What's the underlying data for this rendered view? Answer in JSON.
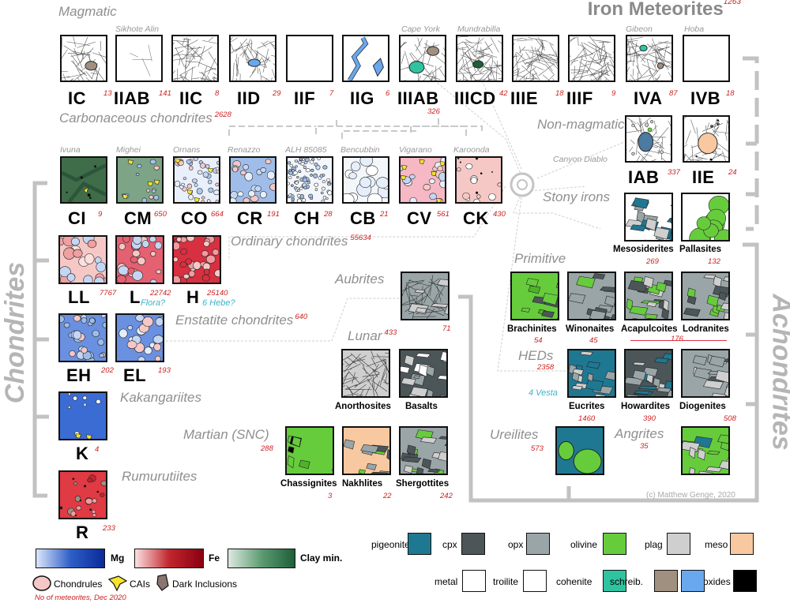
{
  "colors": {
    "mg": "#2f5fc7",
    "fe": "#c2262e",
    "clay": "#1e5e38",
    "pigeonite": "#1f7892",
    "cpx": "#4c5658",
    "opx": "#9aa5a8",
    "olivine": "#66cc3c",
    "plag": "#cfcfcf",
    "meso": "#f8c8a0",
    "metal": "#ffffff",
    "troilite": "#ffffff",
    "cohenite": "#2fc3a0",
    "schreib": "#a09080",
    "oxides": "#6aa8ee",
    "black": "#000000"
  },
  "title": {
    "text": "Iron Meteorites",
    "count": "1263"
  },
  "headers": {
    "magmatic": "Magmatic",
    "carbonaceous": "Carbonaceous chondrites",
    "carbonaceous_count": "2628",
    "ordinary": "Ordinary chondrites",
    "ordinary_count": "55634",
    "enstatite": "Enstatite chondrites",
    "enstatite_count": "640",
    "kakangari": "Kakangariites",
    "rumuruti": "Rumurutiites",
    "nonmagmatic": "Non-magmatic",
    "stony": "Stony irons",
    "primitive": "Primitive",
    "aubrites": "Aubrites",
    "lunar": "Lunar",
    "lunar_count": "433",
    "martian": "Martian (SNC)",
    "martian_count": "288",
    "heds": "HEDs",
    "heds_count": "2358",
    "ureilites": "Ureilites",
    "ureilites_count": "573",
    "angrites": "Angrites",
    "angrites_count": "35",
    "chondrites": "Chondrites",
    "achondrites": "Achondrites"
  },
  "subs": {
    "sikhote": "Sikhote Alin",
    "capeyork": "Cape York",
    "mundrabilla": "Mundrabilla",
    "gibeon": "Gibeon",
    "hoba": "Hoba",
    "canyon": "Canyon Diablo",
    "ivuna": "Ivuna",
    "mighei": "Mighei",
    "ornans": "Ornans",
    "renazzo": "Renazzo",
    "alh": "ALH 85085",
    "bencubbin": "Bencubbin",
    "vigarano": "Vigarano",
    "karoonda": "Karoonda"
  },
  "irons": [
    {
      "label": "IC",
      "count": "13"
    },
    {
      "label": "IIAB",
      "count": "141"
    },
    {
      "label": "IIC",
      "count": "8"
    },
    {
      "label": "IID",
      "count": "29"
    },
    {
      "label": "IIF",
      "count": "7"
    },
    {
      "label": "IIG",
      "count": "6"
    },
    {
      "label": "IIIAB",
      "count": "326"
    },
    {
      "label": "IIICD",
      "count": "42"
    },
    {
      "label": "IIIE",
      "count": "18"
    },
    {
      "label": "IIIF",
      "count": "9"
    },
    {
      "label": "IVA",
      "count": "87"
    },
    {
      "label": "IVB",
      "count": "18"
    }
  ],
  "carbon": [
    {
      "label": "CI",
      "count": "9"
    },
    {
      "label": "CM",
      "count": "650"
    },
    {
      "label": "CO",
      "count": "664"
    },
    {
      "label": "CR",
      "count": "191"
    },
    {
      "label": "CH",
      "count": "28"
    },
    {
      "label": "CB",
      "count": "21"
    },
    {
      "label": "CV",
      "count": "561"
    },
    {
      "label": "CK",
      "count": "430"
    }
  ],
  "ordinary": [
    {
      "label": "LL",
      "count": "7767"
    },
    {
      "label": "L",
      "count": "22742"
    },
    {
      "label": "H",
      "count": "25140"
    }
  ],
  "flora": "Flora?",
  "hebe": "6 Hebe?",
  "vesta": "4 Vesta",
  "enstatite": [
    {
      "label": "EH",
      "count": "202"
    },
    {
      "label": "EL",
      "count": "193"
    }
  ],
  "kak": {
    "label": "K",
    "count": "4"
  },
  "rum": {
    "label": "R",
    "count": "233"
  },
  "nonmag": [
    {
      "label": "IAB",
      "count": "337"
    },
    {
      "label": "IIE",
      "count": "24"
    }
  ],
  "stony": [
    {
      "label": "Mesosiderites",
      "count": "269"
    },
    {
      "label": "Pallasites",
      "count": "132"
    }
  ],
  "primitive": [
    {
      "label": "Brachinites",
      "count": "54"
    },
    {
      "label": "Winonaites",
      "count": "45"
    },
    {
      "label": "Acapulcoites",
      "count": ""
    },
    {
      "label": "Lodranites",
      "count": ""
    }
  ],
  "prim_shared_count": "176",
  "aubrite_count": "71",
  "lunar": [
    {
      "label": "Anorthosites"
    },
    {
      "label": "Basalts"
    }
  ],
  "martian": [
    {
      "label": "Chassignites",
      "count": "3"
    },
    {
      "label": "Nakhlites",
      "count": "22"
    },
    {
      "label": "Shergottites",
      "count": "242"
    }
  ],
  "hed": [
    {
      "label": "Eucrites",
      "count": "1460"
    },
    {
      "label": "Howardites",
      "count": "390"
    },
    {
      "label": "Diogenites",
      "count": "508"
    }
  ],
  "copyright": "(c) Matthew Genge, 2020",
  "legend": {
    "mg": "Mg",
    "fe": "Fe",
    "clay": "Clay min.",
    "chondrules": "Chondrules",
    "cais": "CAIs",
    "dark": "Dark Inclusions",
    "note": "No of meteorites, Dec 2020"
  },
  "minerals": [
    {
      "name": "pigeonite"
    },
    {
      "name": "cpx"
    },
    {
      "name": "opx"
    },
    {
      "name": "olivine"
    },
    {
      "name": "plag"
    },
    {
      "name": "meso"
    },
    {
      "name": "metal"
    },
    {
      "name": "troilite"
    },
    {
      "name": "cohenite"
    },
    {
      "name": "schreib."
    },
    {
      "name": "oxides"
    }
  ]
}
